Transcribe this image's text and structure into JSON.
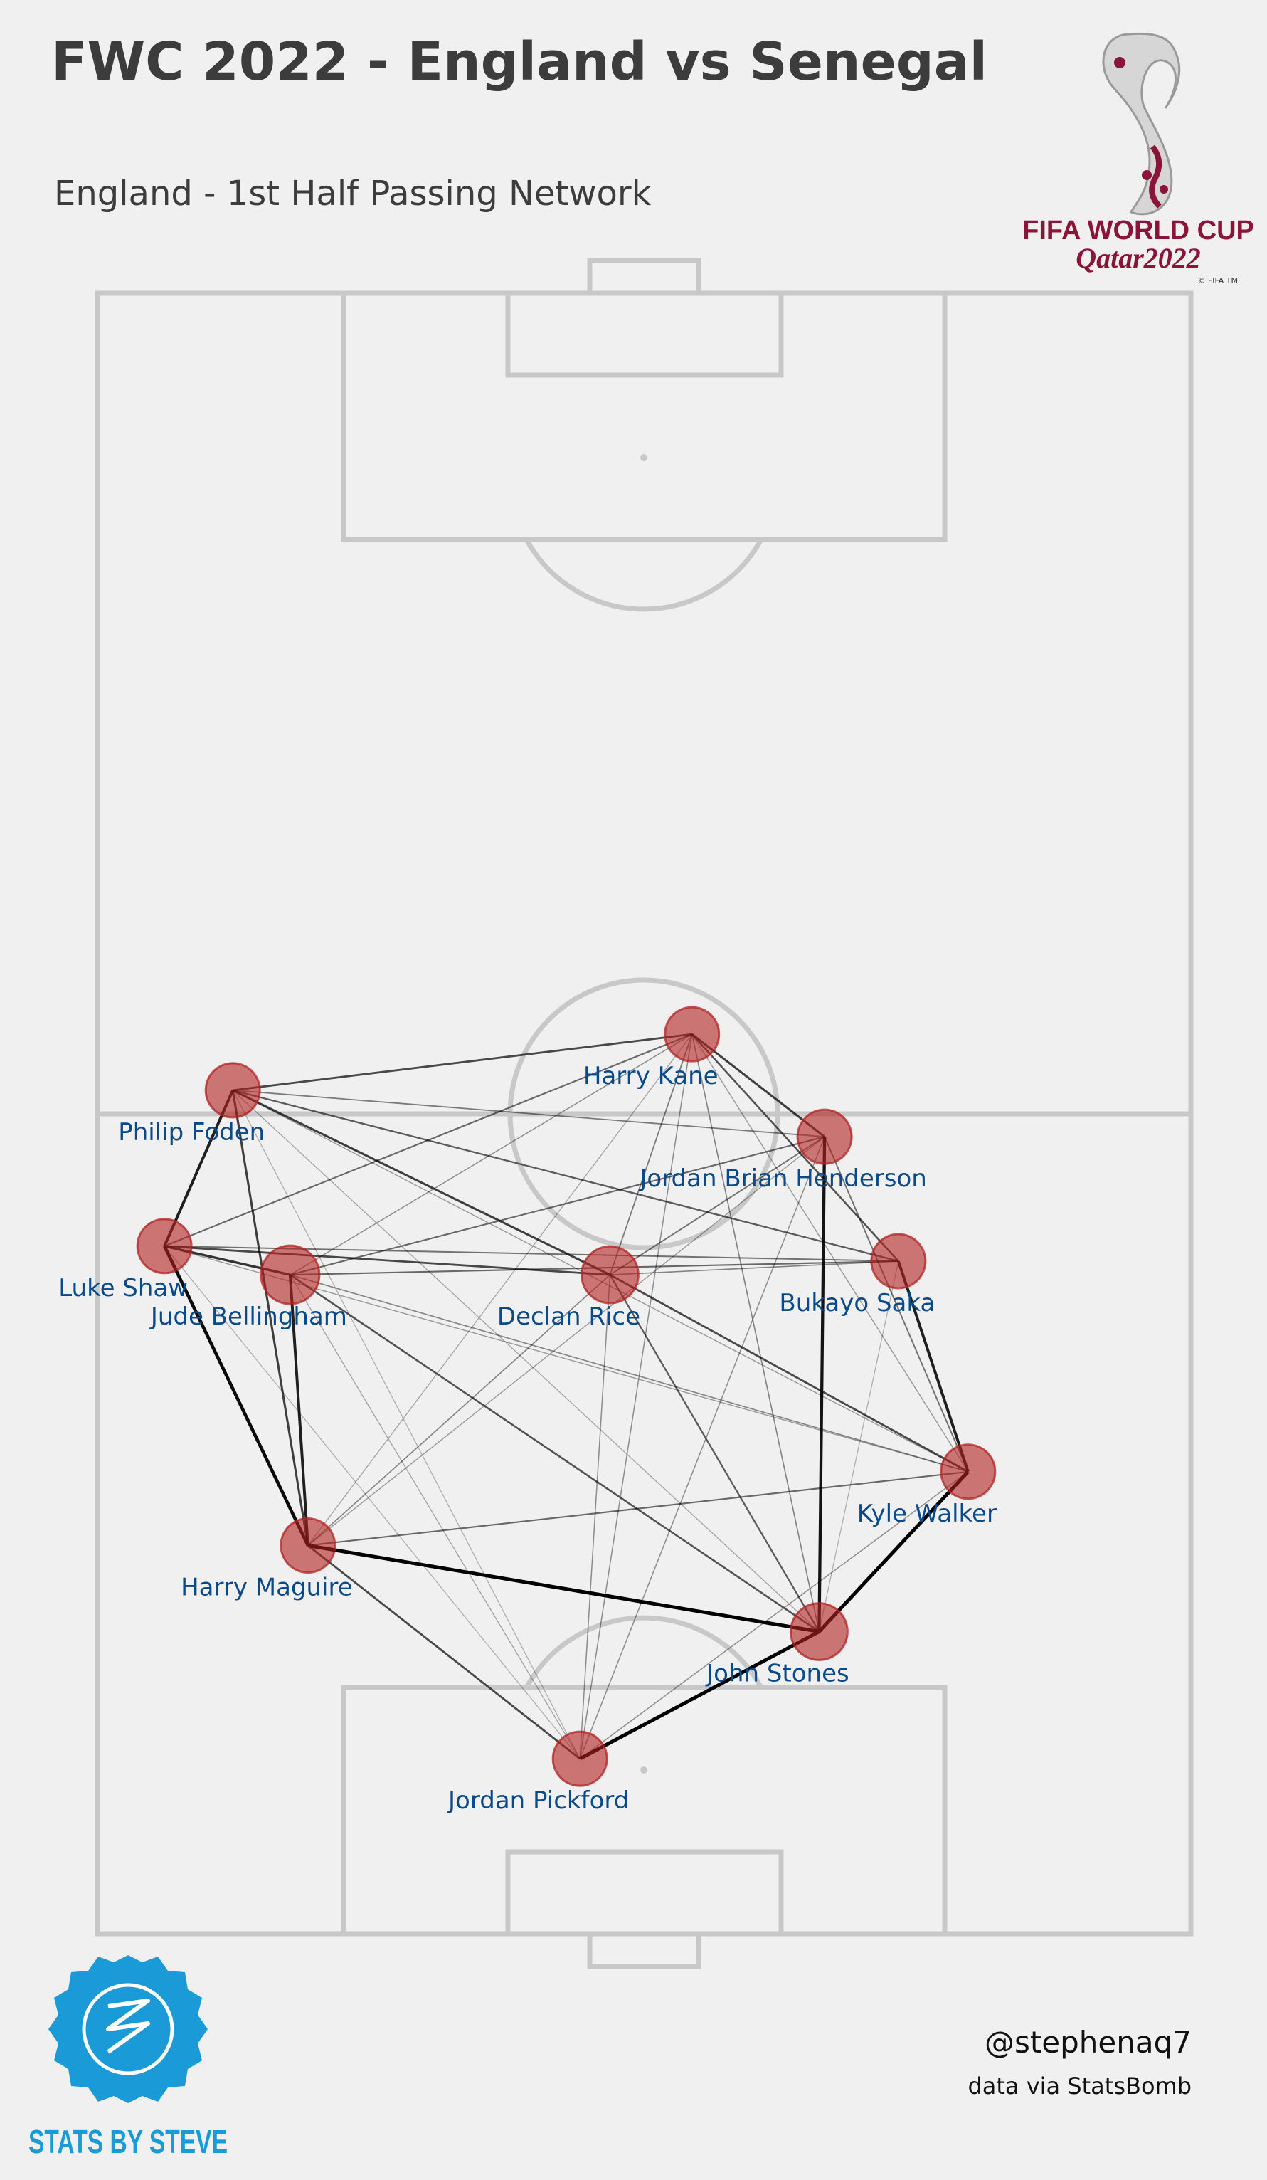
{
  "title": "FWC 2022 - England vs Senegal",
  "subtitle": "England  - 1st Half Passing Network",
  "logo": {
    "line1": "FIFA WORLD CUP",
    "line2": "Qatar2022",
    "mark": "© FIFA TM",
    "color": "#8a1538"
  },
  "footer": {
    "handle": "@stephenaq7",
    "credit": "data via StatsBomb",
    "brand": "STATS BY STEVE",
    "brand_color": "#1a9ad6"
  },
  "chart_data": {
    "type": "network",
    "pitch": "StatsBomb 120x80, vertical orientation, England attacking upward",
    "node_color": "#b22222",
    "label_color": "#0b4a8a",
    "nodes": [
      {
        "id": "foden",
        "name": "Philip Foden",
        "x": 61.7,
        "y": 70.1,
        "size": 1.0
      },
      {
        "id": "kane",
        "name": "Harry Kane",
        "x": 65.8,
        "y": 36.5,
        "size": 1.0
      },
      {
        "id": "shaw",
        "name": "Luke Shaw",
        "x": 50.3,
        "y": 75.1,
        "size": 1.0
      },
      {
        "id": "bellingham",
        "name": "Jude Bellingham",
        "x": 48.2,
        "y": 65.9,
        "size": 1.08
      },
      {
        "id": "saka",
        "name": "Bukayo Saka",
        "x": 49.2,
        "y": 21.4,
        "size": 1.0
      },
      {
        "id": "henderson",
        "name": "Jordan Brian Henderson",
        "x": 58.3,
        "y": 26.8,
        "size": 1.0
      },
      {
        "id": "rice",
        "name": "Declan Rice",
        "x": 48.2,
        "y": 42.5,
        "size": 1.05
      },
      {
        "id": "walker",
        "name": "Kyle Walker",
        "x": 33.8,
        "y": 16.3,
        "size": 1.0
      },
      {
        "id": "maguire",
        "name": "Harry Maguire",
        "x": 28.4,
        "y": 64.6,
        "size": 1.0
      },
      {
        "id": "stones",
        "name": "John Stones",
        "x": 22.1,
        "y": 27.2,
        "size": 1.05
      },
      {
        "id": "pickford",
        "name": "Jordan Pickford",
        "x": 12.8,
        "y": 44.7,
        "size": 1.0
      }
    ],
    "edges": [
      [
        "stones",
        "walker",
        1.0
      ],
      [
        "maguire",
        "stones",
        1.0
      ],
      [
        "stones",
        "pickford",
        1.0
      ],
      [
        "shaw",
        "maguire",
        0.95
      ],
      [
        "stones",
        "henderson",
        0.9
      ],
      [
        "foden",
        "shaw",
        0.85
      ],
      [
        "maguire",
        "bellingham",
        0.85
      ],
      [
        "walker",
        "saka",
        0.85
      ],
      [
        "shaw",
        "bellingham",
        0.75
      ],
      [
        "foden",
        "maguire",
        0.7
      ],
      [
        "foden",
        "rice",
        0.7
      ],
      [
        "kane",
        "henderson",
        0.7
      ],
      [
        "shaw",
        "rice",
        0.65
      ],
      [
        "walker",
        "rice",
        0.65
      ],
      [
        "maguire",
        "pickford",
        0.65
      ],
      [
        "foden",
        "kane",
        0.65
      ],
      [
        "bellingham",
        "stones",
        0.6
      ],
      [
        "kane",
        "saka",
        0.6
      ],
      [
        "saka",
        "foden",
        0.55
      ],
      [
        "rice",
        "stones",
        0.55
      ],
      [
        "walker",
        "maguire",
        0.5
      ],
      [
        "bellingham",
        "saka",
        0.5
      ],
      [
        "bellingham",
        "henderson",
        0.5
      ],
      [
        "shaw",
        "kane",
        0.5
      ],
      [
        "saka",
        "shaw",
        0.45
      ],
      [
        "henderson",
        "walker",
        0.45
      ],
      [
        "rice",
        "henderson",
        0.45
      ],
      [
        "kane",
        "rice",
        0.4
      ],
      [
        "foden",
        "henderson",
        0.4
      ],
      [
        "rice",
        "saka",
        0.35
      ],
      [
        "rice",
        "maguire",
        0.35
      ],
      [
        "kane",
        "stones",
        0.35
      ],
      [
        "bellingham",
        "walker",
        0.35
      ],
      [
        "kane",
        "bellingham",
        0.3
      ],
      [
        "kane",
        "pickford",
        0.3
      ],
      [
        "rice",
        "pickford",
        0.3
      ],
      [
        "walker",
        "pickford",
        0.3
      ],
      [
        "henderson",
        "pickford",
        0.3
      ],
      [
        "foden",
        "walker",
        0.25
      ],
      [
        "kane",
        "walker",
        0.25
      ],
      [
        "shaw",
        "walker",
        0.25
      ],
      [
        "maguire",
        "henderson",
        0.25
      ],
      [
        "bellingham",
        "pickford",
        0.2
      ],
      [
        "foden",
        "stones",
        0.2
      ],
      [
        "kane",
        "maguire",
        0.2
      ],
      [
        "shaw",
        "pickford",
        0.15
      ],
      [
        "saka",
        "stones",
        0.15
      ],
      [
        "foden",
        "pickford",
        0.15
      ]
    ]
  }
}
